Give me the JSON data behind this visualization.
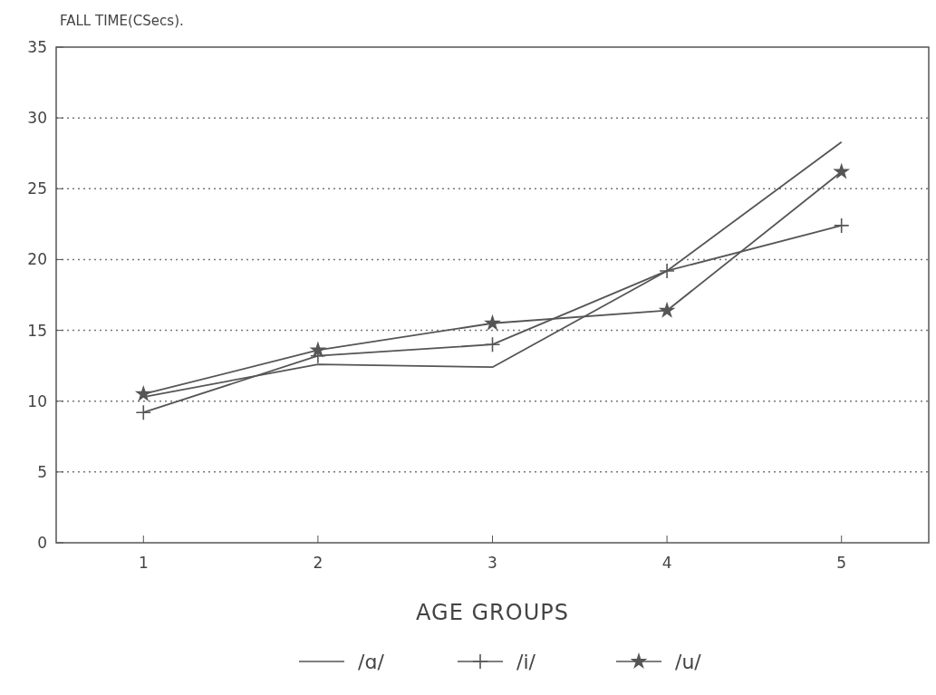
{
  "chart_data": {
    "type": "line",
    "ylabel": "FALL TIME(CSecs).",
    "xlabel": "AGE GROUPS",
    "categories": [
      "1",
      "2",
      "3",
      "4",
      "5"
    ],
    "ylim": [
      0,
      35
    ],
    "yticks": [
      0,
      5,
      10,
      15,
      20,
      25,
      30,
      35
    ],
    "grid": "y",
    "legend": "bottom",
    "line_style": "solid",
    "series": [
      {
        "name": "/ɑ/",
        "color": "#555555",
        "marker": "none",
        "values": [
          10.3,
          12.6,
          12.4,
          19.2,
          28.3
        ]
      },
      {
        "name": "/i/",
        "color": "#555555",
        "marker": "cross",
        "values": [
          9.2,
          13.2,
          14.0,
          19.2,
          22.4
        ]
      },
      {
        "name": "/u/",
        "color": "#555555",
        "marker": "star",
        "values": [
          10.5,
          13.6,
          15.5,
          16.4,
          26.2
        ]
      }
    ]
  }
}
